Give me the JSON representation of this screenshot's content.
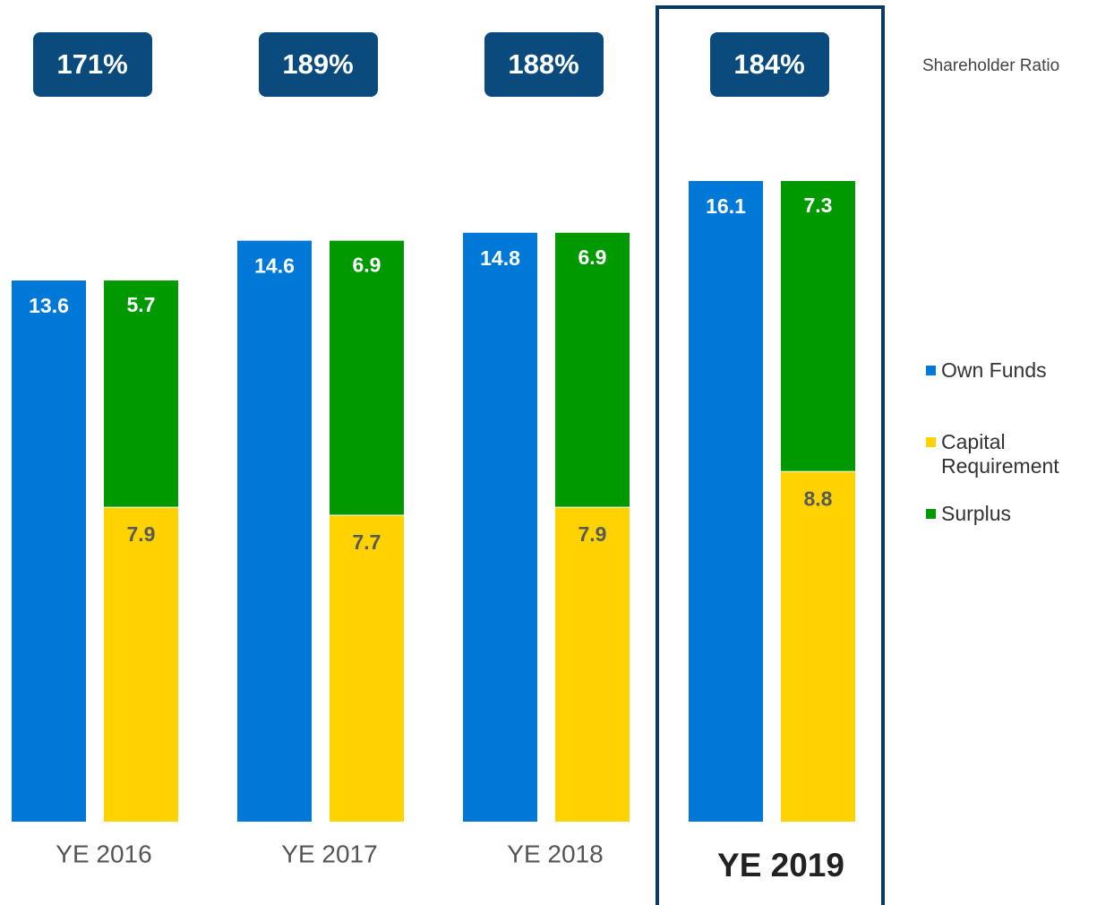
{
  "chart_data": {
    "type": "bar",
    "categories": [
      "YE 2016",
      "YE 2017",
      "YE 2018",
      "YE 2019"
    ],
    "series": [
      {
        "name": "Own Funds",
        "color": "#0078d7",
        "values": [
          13.6,
          14.6,
          14.8,
          16.1
        ]
      },
      {
        "name": "Capital Requirement",
        "color": "#ffd200",
        "values": [
          7.9,
          7.7,
          7.9,
          8.8
        ]
      },
      {
        "name": "Surplus",
        "color": "#009a00",
        "values": [
          5.7,
          6.9,
          6.9,
          7.3
        ]
      }
    ],
    "ratio": {
      "name": "Shareholder Ratio",
      "values": [
        171,
        189,
        188,
        184
      ],
      "value_labels": [
        "171%",
        "189%",
        "188%",
        "184%"
      ],
      "color": "#0b4a7c"
    },
    "legend": "right"
  }
}
